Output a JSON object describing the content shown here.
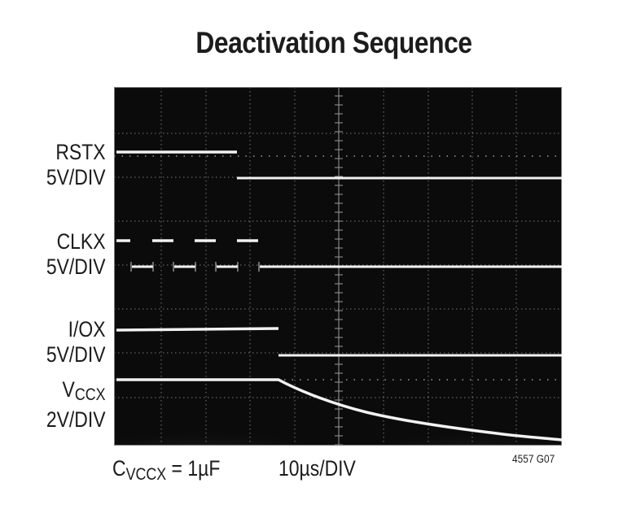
{
  "chart_data": {
    "type": "line",
    "title": "Deactivation Sequence",
    "subtype": "oscilloscope-capture",
    "xlabel": "10µs/DIV",
    "time_per_div_us": 10,
    "grid": {
      "on": true,
      "horizontal_divisions": 10,
      "vertical_divisions": 8
    },
    "annotation": "CVCCX = 1µF",
    "figure_id": "4557 G07",
    "series": [
      {
        "name": "RSTX",
        "scale": "5V/DIV",
        "shape": "step-down",
        "x_div": [
          0,
          2.7,
          2.7,
          10
        ],
        "y_div_from_top": [
          1.46,
          1.46,
          2.04,
          2.04
        ]
      },
      {
        "name": "CLKX",
        "scale": "5V/DIV",
        "shape": "square-wave-then-low",
        "period_div": 0.95,
        "stops_at_div": 3.2,
        "high_y_div_from_top": 3.45,
        "low_y_div_from_top": 4.03
      },
      {
        "name": "I/OX",
        "scale": "5V/DIV",
        "shape": "step-down",
        "x_div": [
          0,
          3.65,
          3.65,
          10
        ],
        "y_div_from_top": [
          5.43,
          5.43,
          5.99,
          5.99
        ]
      },
      {
        "name": "VCCX",
        "scale": "2V/DIV",
        "shape": "flat-then-exponential-decay",
        "x_div": [
          0,
          3.65,
          4.5,
          5.5,
          6.5,
          7.5,
          8.5,
          10
        ],
        "y_div_from_top": [
          6.53,
          6.53,
          6.9,
          7.2,
          7.45,
          7.65,
          7.82,
          7.97
        ]
      }
    ]
  },
  "title": "Deactivation Sequence",
  "labels": {
    "rstx": {
      "name": "RSTX",
      "scale": "5V/DIV"
    },
    "clkx": {
      "name": "CLKX",
      "scale": "5V/DIV"
    },
    "iox": {
      "name": "I/OX",
      "scale": "5V/DIV"
    },
    "vccx": {
      "name_main": "V",
      "name_sub": "CCX",
      "scale": "2V/DIV"
    }
  },
  "footer": {
    "cap_main": "C",
    "cap_sub": "VCCX",
    "cap_value": " = 1µF",
    "timebase": "10µs/DIV",
    "figure_id": "4557 G07"
  },
  "colors": {
    "screen": "#0b0b0b",
    "grid": "#8a8a8a",
    "trace": "#f2f2f2",
    "text": "#1c1c1c"
  }
}
